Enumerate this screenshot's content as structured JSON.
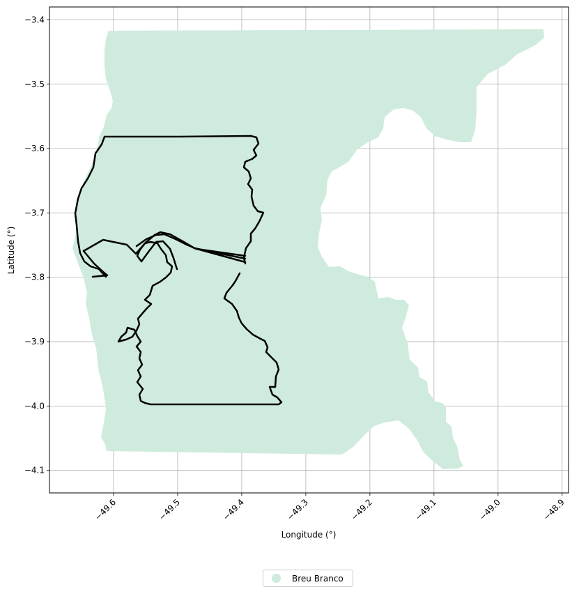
{
  "chart_data": {
    "type": "map",
    "title": "",
    "xlabel": "Longitude (°)",
    "ylabel": "Latitude (°)",
    "xlim": [
      -49.7,
      -48.89
    ],
    "ylim": [
      -4.135,
      -3.38
    ],
    "grid": true,
    "x_ticks": [
      "−49.6",
      "−49.5",
      "−49.4",
      "−49.3",
      "−49.2",
      "−49.1",
      "−49.0",
      "−48.9"
    ],
    "x_tick_values": [
      -49.6,
      -49.5,
      -49.4,
      -49.3,
      -49.2,
      -49.1,
      -49.0,
      -48.9
    ],
    "y_ticks": [
      "−3.4",
      "−3.5",
      "−3.6",
      "−3.7",
      "−3.8",
      "−3.9",
      "−4.0",
      "−4.1"
    ],
    "y_tick_values": [
      -3.4,
      -3.5,
      -3.6,
      -3.7,
      -3.8,
      -3.9,
      -4.0,
      -4.1
    ],
    "legend": {
      "entries": [
        {
          "name": "Breu Branco",
          "color": "#cfebdd"
        }
      ],
      "placement": "bottom-center"
    },
    "fill_color": "#cfebdd",
    "outline_color": "#000000"
  }
}
